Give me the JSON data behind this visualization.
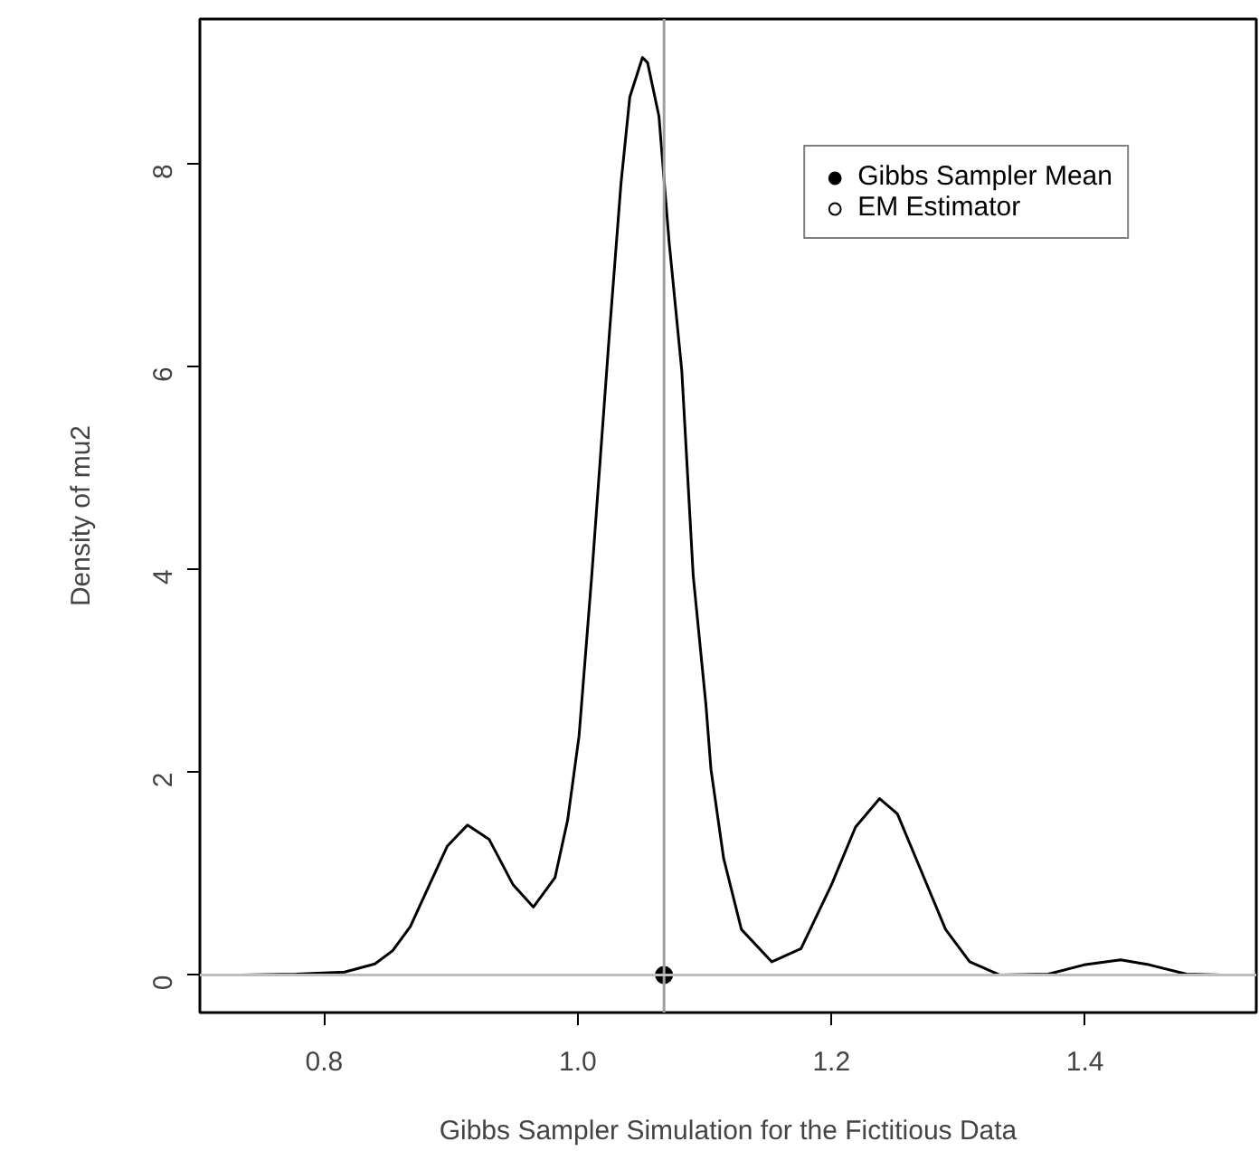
{
  "chart_data": {
    "type": "line",
    "xlabel": "Gibbs Sampler Simulation for the Fictitious Data",
    "ylabel": "Density of mu2",
    "xlim": [
      0.702,
      1.535
    ],
    "ylim": [
      -0.37,
      9.43
    ],
    "xticks": [
      {
        "value": 0.8,
        "label": "0.8"
      },
      {
        "value": 1.0,
        "label": "1.0"
      },
      {
        "value": 1.2,
        "label": "1.2"
      },
      {
        "value": 1.4,
        "label": "1.4"
      }
    ],
    "yticks": [
      0,
      2,
      4,
      6,
      8
    ],
    "grid": false,
    "legend": "top right",
    "series": [
      {
        "color": "#000000",
        "x": [
          0.735,
          0.778,
          0.816,
          0.84,
          0.854,
          0.868,
          0.883,
          0.897,
          0.913,
          0.93,
          0.949,
          0.965,
          0.982,
          0.992,
          1.001,
          1.011,
          1.025,
          1.034,
          1.041,
          1.051,
          1.055,
          1.064,
          1.072,
          1.082,
          1.091,
          1.101,
          1.105,
          1.115,
          1.129,
          1.153,
          1.176,
          1.2,
          1.219,
          1.238,
          1.252,
          1.271,
          1.29,
          1.309,
          1.333,
          1.371,
          1.399,
          1.428,
          1.451,
          1.48,
          1.508
        ],
        "values": [
          0,
          0.01,
          0.03,
          0.11,
          0.24,
          0.48,
          0.89,
          1.27,
          1.48,
          1.34,
          0.89,
          0.67,
          0.96,
          1.53,
          2.36,
          3.94,
          6.34,
          7.8,
          8.66,
          9.05,
          9.0,
          8.47,
          7.23,
          5.96,
          3.94,
          2.67,
          2.03,
          1.15,
          0.45,
          0.13,
          0.26,
          0.89,
          1.46,
          1.74,
          1.59,
          1.02,
          0.45,
          0.13,
          0.0,
          0.01,
          0.1,
          0.15,
          0.1,
          0.01,
          0
        ]
      },
      {
        "type": "scatter",
        "name": "Gibbs Sampler Mean",
        "color": "#000000",
        "marker": "circle",
        "x": [
          1.068
        ],
        "values": [
          0
        ]
      },
      {
        "type": "scatter",
        "name": "EM Estimator",
        "marker": "circle"
      }
    ],
    "ref_lines": [
      {
        "axis": "x",
        "value": 1.068,
        "color": "#a0a0a0"
      },
      {
        "axis": "y",
        "value": 0,
        "color": "#bebebe"
      }
    ]
  }
}
